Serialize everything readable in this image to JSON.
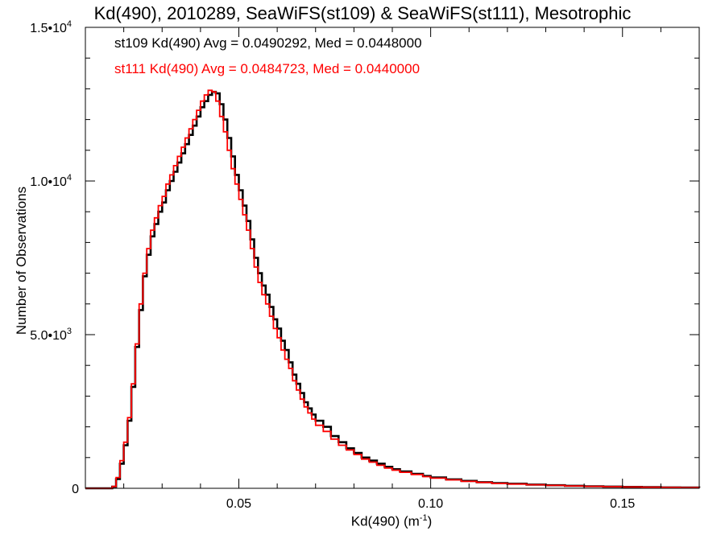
{
  "chart_data": {
    "type": "histogram",
    "title": "Kd(490), 2010289, SeaWiFS(st109) & SeaWiFS(st111), Mesotrophic",
    "xlabel_main": "Kd(490) (m",
    "xlabel_sup": "-1",
    "xlabel_close": ")",
    "ylabel": "Number of Observations",
    "xlim": [
      0.01,
      0.17
    ],
    "ylim": [
      0,
      15000
    ],
    "xticks": [
      {
        "value": 0.05,
        "label": "0.05"
      },
      {
        "value": 0.1,
        "label": "0.10"
      },
      {
        "value": 0.15,
        "label": "0.15"
      }
    ],
    "yticks": [
      {
        "value": 0,
        "label": "0",
        "exp": ""
      },
      {
        "value": 5000,
        "label": "5.0•10",
        "exp": "3"
      },
      {
        "value": 10000,
        "label": "1.0•10",
        "exp": "4"
      },
      {
        "value": 15000,
        "label": "1.5•10",
        "exp": "4"
      }
    ],
    "annotations": [
      "st109 Kd(490) Avg = 0.0490292, Med = 0.0448000",
      "st111 Kd(490) Avg = 0.0484723, Med = 0.0440000"
    ],
    "series": [
      {
        "name": "st109",
        "color": "#000000",
        "points": [
          [
            0.01,
            0
          ],
          [
            0.015,
            0
          ],
          [
            0.017,
            50
          ],
          [
            0.018,
            300
          ],
          [
            0.019,
            800
          ],
          [
            0.02,
            1400
          ],
          [
            0.021,
            2200
          ],
          [
            0.022,
            3300
          ],
          [
            0.023,
            4600
          ],
          [
            0.024,
            5800
          ],
          [
            0.025,
            6900
          ],
          [
            0.026,
            7600
          ],
          [
            0.027,
            8200
          ],
          [
            0.028,
            8600
          ],
          [
            0.029,
            9000
          ],
          [
            0.03,
            9300
          ],
          [
            0.031,
            9700
          ],
          [
            0.032,
            10000
          ],
          [
            0.033,
            10300
          ],
          [
            0.034,
            10600
          ],
          [
            0.035,
            10900
          ],
          [
            0.036,
            11200
          ],
          [
            0.037,
            11500
          ],
          [
            0.038,
            11800
          ],
          [
            0.039,
            12100
          ],
          [
            0.04,
            12400
          ],
          [
            0.041,
            12600
          ],
          [
            0.042,
            12800
          ],
          [
            0.043,
            12900
          ],
          [
            0.044,
            12850
          ],
          [
            0.045,
            12500
          ],
          [
            0.046,
            12000
          ],
          [
            0.047,
            11400
          ],
          [
            0.048,
            10800
          ],
          [
            0.049,
            10200
          ],
          [
            0.05,
            9700
          ],
          [
            0.051,
            9200
          ],
          [
            0.052,
            8700
          ],
          [
            0.053,
            8100
          ],
          [
            0.054,
            7500
          ],
          [
            0.055,
            7000
          ],
          [
            0.056,
            6600
          ],
          [
            0.057,
            6300
          ],
          [
            0.058,
            5900
          ],
          [
            0.059,
            5500
          ],
          [
            0.06,
            5200
          ],
          [
            0.061,
            4800
          ],
          [
            0.062,
            4500
          ],
          [
            0.063,
            4100
          ],
          [
            0.064,
            3700
          ],
          [
            0.065,
            3400
          ],
          [
            0.066,
            3100
          ],
          [
            0.067,
            2800
          ],
          [
            0.068,
            2600
          ],
          [
            0.069,
            2400
          ],
          [
            0.07,
            2200
          ],
          [
            0.072,
            2000
          ],
          [
            0.074,
            1700
          ],
          [
            0.076,
            1500
          ],
          [
            0.078,
            1300
          ],
          [
            0.08,
            1150
          ],
          [
            0.082,
            1000
          ],
          [
            0.084,
            900
          ],
          [
            0.086,
            800
          ],
          [
            0.088,
            700
          ],
          [
            0.09,
            620
          ],
          [
            0.092,
            550
          ],
          [
            0.095,
            470
          ],
          [
            0.098,
            400
          ],
          [
            0.1,
            350
          ],
          [
            0.104,
            290
          ],
          [
            0.108,
            240
          ],
          [
            0.112,
            200
          ],
          [
            0.116,
            170
          ],
          [
            0.12,
            150
          ],
          [
            0.125,
            120
          ],
          [
            0.13,
            100
          ],
          [
            0.135,
            80
          ],
          [
            0.14,
            65
          ],
          [
            0.145,
            55
          ],
          [
            0.15,
            45
          ],
          [
            0.155,
            38
          ],
          [
            0.16,
            30
          ],
          [
            0.165,
            25
          ],
          [
            0.17,
            20
          ]
        ]
      },
      {
        "name": "st111",
        "color": "#ff0000",
        "points": [
          [
            0.01,
            0
          ],
          [
            0.015,
            0
          ],
          [
            0.017,
            60
          ],
          [
            0.018,
            350
          ],
          [
            0.019,
            900
          ],
          [
            0.02,
            1500
          ],
          [
            0.021,
            2300
          ],
          [
            0.022,
            3400
          ],
          [
            0.023,
            4700
          ],
          [
            0.024,
            6000
          ],
          [
            0.025,
            7000
          ],
          [
            0.026,
            7800
          ],
          [
            0.027,
            8400
          ],
          [
            0.028,
            8800
          ],
          [
            0.029,
            9200
          ],
          [
            0.03,
            9500
          ],
          [
            0.031,
            9900
          ],
          [
            0.032,
            10200
          ],
          [
            0.033,
            10500
          ],
          [
            0.034,
            10800
          ],
          [
            0.035,
            11100
          ],
          [
            0.036,
            11400
          ],
          [
            0.037,
            11700
          ],
          [
            0.038,
            12000
          ],
          [
            0.039,
            12300
          ],
          [
            0.04,
            12600
          ],
          [
            0.041,
            12800
          ],
          [
            0.042,
            12950
          ],
          [
            0.043,
            12900
          ],
          [
            0.044,
            12600
          ],
          [
            0.045,
            12100
          ],
          [
            0.046,
            11600
          ],
          [
            0.047,
            11000
          ],
          [
            0.048,
            10400
          ],
          [
            0.049,
            9900
          ],
          [
            0.05,
            9400
          ],
          [
            0.051,
            8900
          ],
          [
            0.052,
            8400
          ],
          [
            0.053,
            7800
          ],
          [
            0.054,
            7200
          ],
          [
            0.055,
            6700
          ],
          [
            0.056,
            6300
          ],
          [
            0.057,
            6000
          ],
          [
            0.058,
            5600
          ],
          [
            0.059,
            5200
          ],
          [
            0.06,
            4900
          ],
          [
            0.061,
            4500
          ],
          [
            0.062,
            4200
          ],
          [
            0.063,
            3900
          ],
          [
            0.064,
            3500
          ],
          [
            0.065,
            3200
          ],
          [
            0.066,
            2900
          ],
          [
            0.067,
            2650
          ],
          [
            0.068,
            2450
          ],
          [
            0.069,
            2250
          ],
          [
            0.07,
            2050
          ],
          [
            0.072,
            1850
          ],
          [
            0.074,
            1600
          ],
          [
            0.076,
            1400
          ],
          [
            0.078,
            1250
          ],
          [
            0.08,
            1100
          ],
          [
            0.082,
            950
          ],
          [
            0.084,
            850
          ],
          [
            0.086,
            750
          ],
          [
            0.088,
            660
          ],
          [
            0.09,
            590
          ],
          [
            0.092,
            520
          ],
          [
            0.095,
            450
          ],
          [
            0.098,
            380
          ],
          [
            0.1,
            330
          ],
          [
            0.104,
            275
          ],
          [
            0.108,
            225
          ],
          [
            0.112,
            190
          ],
          [
            0.116,
            160
          ],
          [
            0.12,
            140
          ],
          [
            0.125,
            115
          ],
          [
            0.13,
            95
          ],
          [
            0.135,
            75
          ],
          [
            0.14,
            62
          ],
          [
            0.145,
            52
          ],
          [
            0.15,
            42
          ],
          [
            0.155,
            35
          ],
          [
            0.16,
            28
          ],
          [
            0.165,
            22
          ],
          [
            0.17,
            18
          ]
        ]
      }
    ]
  }
}
